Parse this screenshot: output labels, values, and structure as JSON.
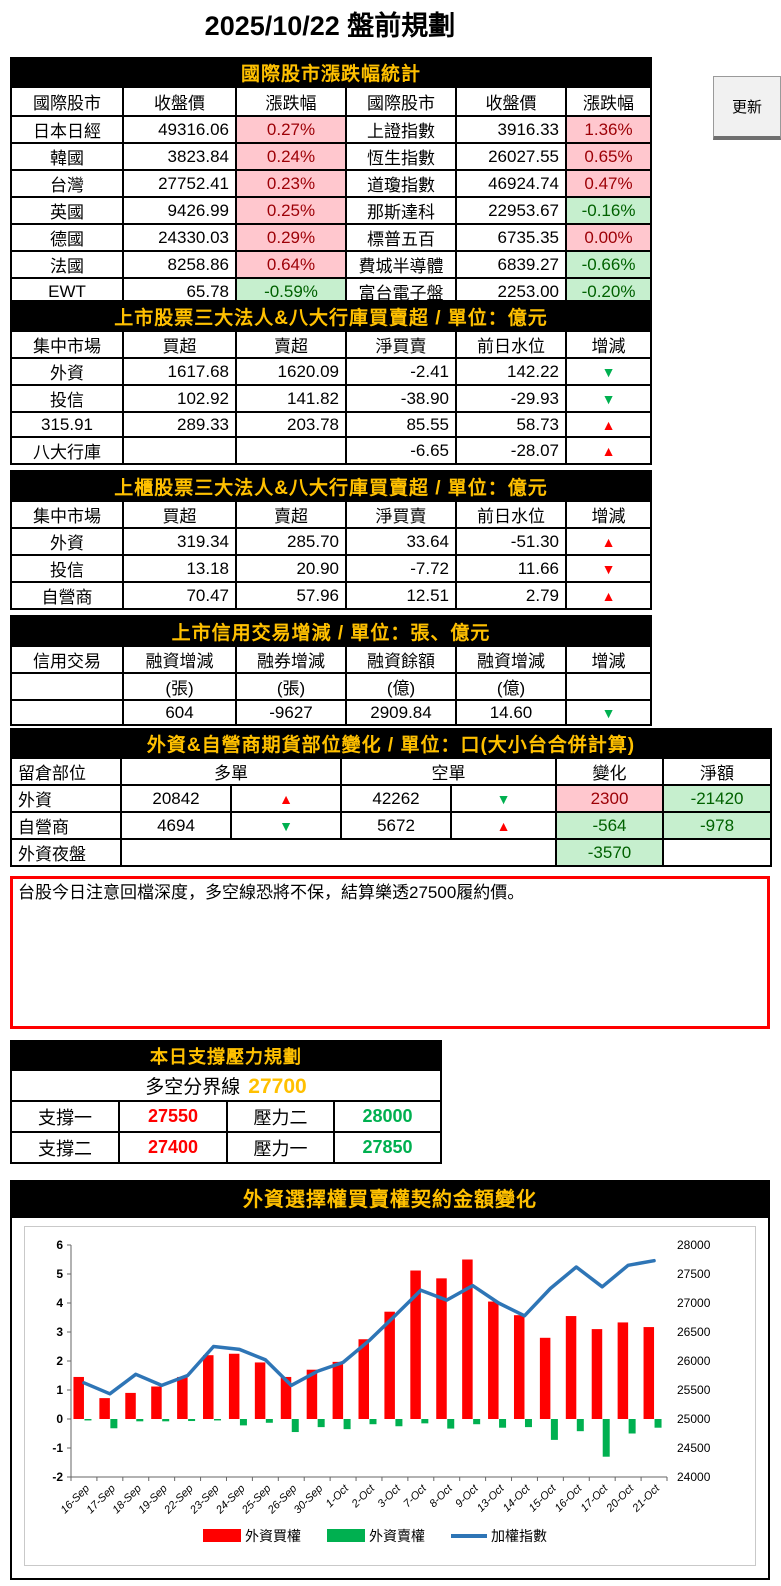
{
  "page": {
    "title": "2025/10/22 盤前規劃"
  },
  "update_button": {
    "label": "更新"
  },
  "colors": {
    "header_bg": "#000000",
    "header_text": "#FFC000",
    "up_bg": "#FFC7CE",
    "up_text": "#9C0006",
    "down_bg": "#C6EFCE",
    "down_text": "#006100",
    "triangle_red": "#FF0000",
    "triangle_green": "#00B050",
    "support_red": "#FF0000",
    "resistance_green": "#00B050",
    "pivot_orange": "#FFC000",
    "bar_red": "#FF0000",
    "bar_green": "#00B050",
    "line_blue": "#2E75B6",
    "note_border": "#FF0000"
  },
  "international_table": {
    "title": "國際股市漲跌幅統計",
    "headers": [
      "國際股市",
      "收盤價",
      "漲跌幅",
      "國際股市",
      "收盤價",
      "漲跌幅"
    ],
    "rows": [
      [
        "日本日經",
        "49316.06",
        {
          "v": "0.27%",
          "s": "up"
        },
        "上證指數",
        "3916.33",
        {
          "v": "1.36%",
          "s": "up"
        }
      ],
      [
        "韓國",
        "3823.84",
        {
          "v": "0.24%",
          "s": "up"
        },
        "恆生指數",
        "26027.55",
        {
          "v": "0.65%",
          "s": "up"
        }
      ],
      [
        "台灣",
        "27752.41",
        {
          "v": "0.23%",
          "s": "up"
        },
        "道瓊指數",
        "46924.74",
        {
          "v": "0.47%",
          "s": "up"
        }
      ],
      [
        "英國",
        "9426.99",
        {
          "v": "0.25%",
          "s": "up"
        },
        "那斯達科",
        "22953.67",
        {
          "v": "-0.16%",
          "s": "down"
        }
      ],
      [
        "德國",
        "24330.03",
        {
          "v": "0.29%",
          "s": "up"
        },
        "標普五百",
        "6735.35",
        {
          "v": "0.00%",
          "s": "up"
        }
      ],
      [
        "法國",
        "8258.86",
        {
          "v": "0.64%",
          "s": "up"
        },
        "費城半導體",
        "6839.27",
        {
          "v": "-0.66%",
          "s": "down"
        }
      ],
      [
        "EWT",
        "65.78",
        {
          "v": "-0.59%",
          "s": "down"
        },
        "富台電子盤",
        "2253.00",
        {
          "v": "-0.20%",
          "s": "down"
        }
      ]
    ]
  },
  "listed_table": {
    "title": "上市股票三大法人&八大行庫買賣超 / 單位：億元",
    "headers": [
      "集中市場",
      "買超",
      "賣超",
      "淨買賣",
      "前日水位",
      "增減"
    ],
    "rows": [
      [
        "外資",
        "1617.68",
        "1620.09",
        "-2.41",
        "142.22",
        {
          "tri": "down-green"
        }
      ],
      [
        "投信",
        "102.92",
        "141.82",
        "-38.90",
        "-29.93",
        {
          "tri": "down-green"
        }
      ],
      [
        "315.91",
        "289.33",
        "203.78",
        "85.55",
        "58.73",
        {
          "tri": "up-red"
        }
      ],
      [
        "八大行庫",
        "",
        "",
        "-6.65",
        "-28.07",
        {
          "tri": "up-red"
        }
      ]
    ]
  },
  "otc_table": {
    "title": "上櫃股票三大法人&八大行庫買賣超 / 單位：億元",
    "headers": [
      "集中市場",
      "買超",
      "賣超",
      "淨買賣",
      "前日水位",
      "增減"
    ],
    "rows": [
      [
        "外資",
        "319.34",
        "285.70",
        "33.64",
        "-51.30",
        {
          "tri": "up-red"
        }
      ],
      [
        "投信",
        "13.18",
        "20.90",
        "-7.72",
        "11.66",
        {
          "tri": "down-red"
        }
      ],
      [
        "自營商",
        "70.47",
        "57.96",
        "12.51",
        "2.79",
        {
          "tri": "up-red"
        }
      ]
    ]
  },
  "margin_table": {
    "title": "上市信用交易增減 / 單位：張、億元",
    "headers": [
      "信用交易",
      "融資增減",
      "融券增減",
      "融資餘額",
      "融資增減",
      "增減"
    ],
    "unit_row": [
      "",
      "(張)",
      "(張)",
      "(億)",
      "(億)",
      ""
    ],
    "data_row": [
      "",
      "604",
      "-9627",
      "2909.84",
      "14.60",
      {
        "tri": "down-green"
      }
    ]
  },
  "futures_table": {
    "title": "外資&自營商期貨部位變化 / 單位：口(大小台合併計算)",
    "headers": [
      "留倉部位",
      "多單",
      "空單",
      "變化",
      "淨額"
    ],
    "rows": [
      {
        "label": "外資",
        "long": "20842",
        "long_tri": "up-red",
        "short": "42262",
        "short_tri": "down-green",
        "change": {
          "v": "2300",
          "s": "up"
        },
        "net": {
          "v": "-21420",
          "s": "down"
        }
      },
      {
        "label": "自營商",
        "long": "4694",
        "long_tri": "down-green",
        "short": "5672",
        "short_tri": "up-red",
        "change": {
          "v": "-564",
          "s": "down"
        },
        "net": {
          "v": "-978",
          "s": "down"
        }
      },
      {
        "label": "外資夜盤",
        "merged": true,
        "change": {
          "v": "-3570",
          "s": "down"
        },
        "net": ""
      }
    ]
  },
  "note_box": {
    "text": "台股今日注意回檔深度，多空線恐將不保，結算樂透27500履約價。"
  },
  "support_table": {
    "title": "本日支撐壓力規劃",
    "pivot_label": "多空分界線",
    "pivot_value": "27700",
    "rows": [
      {
        "label": "支撐一",
        "value": "27550",
        "vc": "red",
        "label2": "壓力二",
        "value2": "28000",
        "vc2": "green"
      },
      {
        "label": "支撐二",
        "value": "27400",
        "vc": "red",
        "label2": "壓力一",
        "value2": "27850",
        "vc2": "green"
      }
    ]
  },
  "chart": {
    "title": "外資選擇權買賣權契約金額變化"
  },
  "chart_data": {
    "type": "bar+line combo",
    "title": "外資選擇權買賣權契約金額變化",
    "categories": [
      "16-Sep",
      "17-Sep",
      "18-Sep",
      "19-Sep",
      "22-Sep",
      "23-Sep",
      "24-Sep",
      "25-Sep",
      "26-Sep",
      "30-Sep",
      "1-Oct",
      "2-Oct",
      "3-Oct",
      "7-Oct",
      "8-Oct",
      "9-Oct",
      "13-Oct",
      "14-Oct",
      "15-Oct",
      "16-Oct",
      "17-Oct",
      "20-Oct",
      "21-Oct"
    ],
    "series": [
      {
        "name": "外資買權",
        "type": "bar",
        "axis": "left",
        "color": "#FF0000",
        "values": [
          1.45,
          0.72,
          0.9,
          1.12,
          1.45,
          2.2,
          2.25,
          1.95,
          1.45,
          1.7,
          1.97,
          2.75,
          3.7,
          5.12,
          4.85,
          5.5,
          4.05,
          3.58,
          2.8,
          3.55,
          3.1,
          3.33,
          3.17
        ]
      },
      {
        "name": "外資賣權",
        "type": "bar",
        "axis": "left",
        "color": "#00B050",
        "values": [
          -0.05,
          -0.32,
          -0.08,
          -0.08,
          -0.07,
          -0.05,
          -0.22,
          -0.13,
          -0.45,
          -0.28,
          -0.35,
          -0.18,
          -0.25,
          -0.15,
          -0.33,
          -0.18,
          -0.3,
          -0.28,
          -0.72,
          -0.42,
          -1.3,
          -0.5,
          -0.3
        ]
      },
      {
        "name": "加權指數",
        "type": "line",
        "axis": "right",
        "color": "#2E75B6",
        "values": [
          25625,
          25435,
          25770,
          25580,
          25750,
          26250,
          26200,
          26020,
          25580,
          25820,
          25975,
          26350,
          26780,
          27220,
          27050,
          27300,
          27000,
          26780,
          27250,
          27620,
          27280,
          27650,
          27730
        ]
      }
    ],
    "left_axis": {
      "min": -2,
      "max": 6,
      "ticks": [
        6,
        5,
        4,
        3,
        2,
        1,
        0,
        -1,
        -2
      ]
    },
    "right_axis": {
      "min": 24000,
      "max": 28000,
      "ticks": [
        28000,
        27500,
        27000,
        26500,
        26000,
        25500,
        25000,
        24500,
        24000
      ]
    },
    "grid": false,
    "legend_position": "bottom"
  }
}
